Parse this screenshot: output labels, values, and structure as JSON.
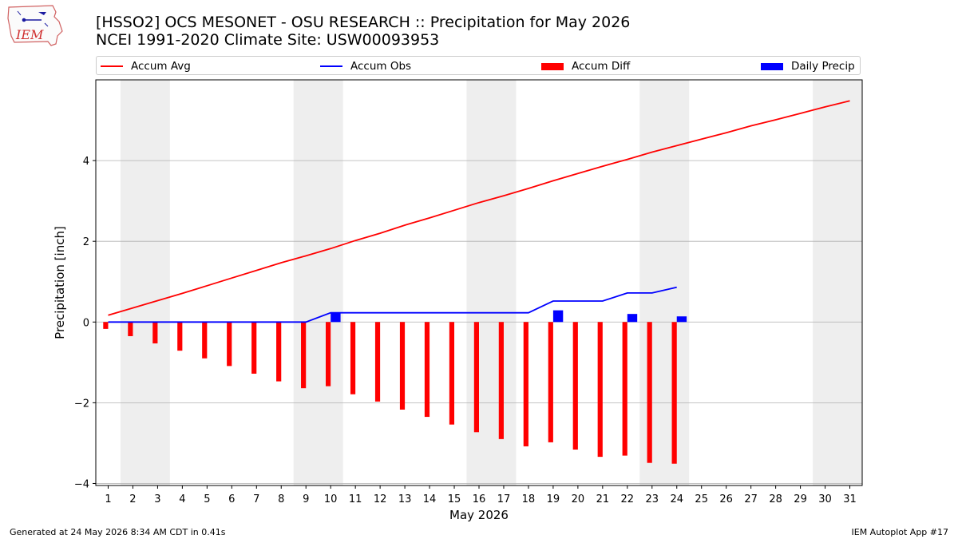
{
  "header": {
    "logo_text": "IEM",
    "title_line1": "[HSSO2] OCS MESONET - OSU RESEARCH :: Precipitation for May 2026",
    "title_line2": "NCEI 1991-2020 Climate Site: USW00093953"
  },
  "legend": {
    "accum_avg": "Accum Avg",
    "accum_obs": "Accum Obs",
    "accum_diff": "Accum Diff",
    "daily_precip": "Daily Precip"
  },
  "colors": {
    "accum_avg": "#ff0000",
    "accum_obs": "#0000ff",
    "accum_diff": "#ff0000",
    "daily_precip": "#0000ff",
    "weekend_shade": "#eeeeee",
    "grid": "#b0b0b0"
  },
  "chart_data": {
    "type": "bar",
    "xlabel": "May 2026",
    "ylabel": "Precipitation [inch]",
    "xlim": [
      0.5,
      31.5
    ],
    "ylim": [
      -4.05,
      6.0
    ],
    "yticks": [
      -4,
      -2,
      0,
      2,
      4
    ],
    "ytick_labels": [
      "−4",
      "−2",
      "0",
      "2",
      "4"
    ],
    "x": [
      1,
      2,
      3,
      4,
      5,
      6,
      7,
      8,
      9,
      10,
      11,
      12,
      13,
      14,
      15,
      16,
      17,
      18,
      19,
      20,
      21,
      22,
      23,
      24,
      25,
      26,
      27,
      28,
      29,
      30,
      31
    ],
    "grid": "y",
    "legend_position": "top",
    "weekend_spans": [
      [
        1.5,
        3.5
      ],
      [
        8.5,
        10.5
      ],
      [
        15.5,
        17.5
      ],
      [
        22.5,
        24.5
      ],
      [
        29.5,
        31.5
      ]
    ],
    "series": [
      {
        "name": "Accum Avg",
        "kind": "line",
        "x": [
          1,
          2,
          3,
          4,
          5,
          6,
          7,
          8,
          9,
          10,
          11,
          12,
          13,
          14,
          15,
          16,
          17,
          18,
          19,
          20,
          21,
          22,
          23,
          24,
          25,
          26,
          27,
          28,
          29,
          30,
          31
        ],
        "values": [
          0.17,
          0.35,
          0.53,
          0.71,
          0.9,
          1.09,
          1.28,
          1.47,
          1.64,
          1.82,
          2.02,
          2.2,
          2.4,
          2.58,
          2.77,
          2.96,
          3.13,
          3.31,
          3.5,
          3.68,
          3.86,
          4.03,
          4.21,
          4.37,
          4.53,
          4.69,
          4.86,
          5.01,
          5.17,
          5.33,
          5.48
        ]
      },
      {
        "name": "Accum Obs",
        "kind": "line",
        "x": [
          1,
          2,
          3,
          4,
          5,
          6,
          7,
          8,
          9,
          10,
          11,
          12,
          13,
          14,
          15,
          16,
          17,
          18,
          19,
          20,
          21,
          22,
          23,
          24
        ],
        "values": [
          0,
          0,
          0,
          0,
          0,
          0,
          0,
          0,
          0,
          0.23,
          0.23,
          0.23,
          0.23,
          0.23,
          0.23,
          0.23,
          0.23,
          0.23,
          0.52,
          0.52,
          0.52,
          0.72,
          0.72,
          0.86
        ]
      },
      {
        "name": "Accum Diff",
        "kind": "bar",
        "x": [
          1,
          2,
          3,
          4,
          5,
          6,
          7,
          8,
          9,
          10,
          11,
          12,
          13,
          14,
          15,
          16,
          17,
          18,
          19,
          20,
          21,
          22,
          23,
          24
        ],
        "values": [
          -0.17,
          -0.35,
          -0.53,
          -0.71,
          -0.9,
          -1.09,
          -1.28,
          -1.47,
          -1.64,
          -1.59,
          -1.79,
          -1.97,
          -2.17,
          -2.35,
          -2.54,
          -2.73,
          -2.9,
          -3.08,
          -2.98,
          -3.16,
          -3.34,
          -3.31,
          -3.49,
          -3.51
        ]
      },
      {
        "name": "Daily Precip",
        "kind": "bar",
        "x": [
          10,
          19,
          22,
          24
        ],
        "values": [
          0.23,
          0.29,
          0.2,
          0.14
        ]
      }
    ]
  },
  "footer": {
    "left": "Generated at 24 May 2026 8:34 AM CDT in 0.41s",
    "right": "IEM Autoplot App #17"
  }
}
